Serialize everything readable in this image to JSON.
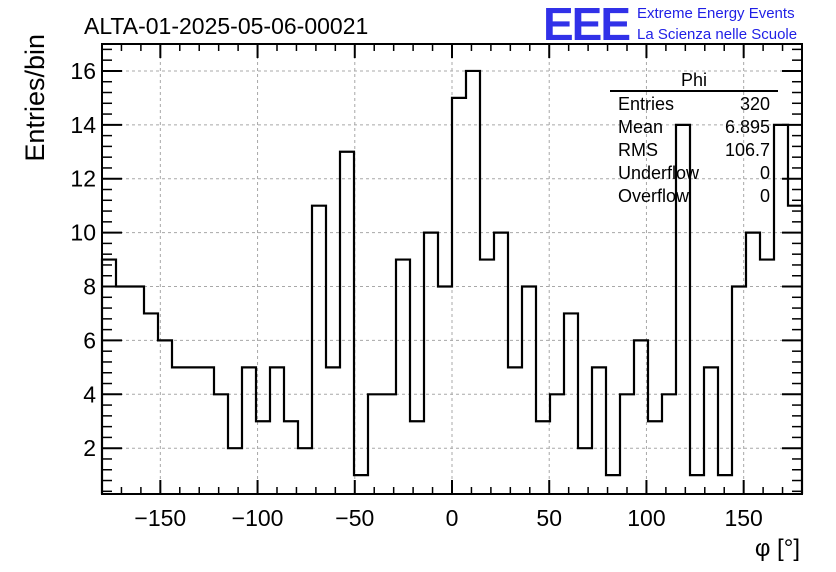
{
  "chart_data": {
    "type": "histogram",
    "title": "ALTA-01-2025-05-06-00021",
    "xlabel": "φ [°]",
    "ylabel": "Entries/bin",
    "xlim": [
      -180,
      180
    ],
    "ylim": [
      0.3,
      17.0
    ],
    "bin_width": 7.2,
    "grid": true,
    "xticks": [
      -150,
      -100,
      -50,
      0,
      50,
      100,
      150
    ],
    "xtick_labels": [
      "−150",
      "−100",
      "−50",
      "0",
      "50",
      "100",
      "150"
    ],
    "yticks": [
      2,
      4,
      6,
      8,
      10,
      12,
      14,
      16
    ],
    "ytick_labels": [
      "2",
      "4",
      "6",
      "8",
      "10",
      "12",
      "14",
      "16"
    ],
    "values": [
      9,
      8,
      8,
      7,
      6,
      5,
      5,
      5,
      4,
      2,
      5,
      3,
      5,
      3,
      2,
      11,
      5,
      13,
      1,
      4,
      4,
      9,
      3,
      10,
      8,
      15,
      16,
      9,
      10,
      5,
      8,
      3,
      4,
      7,
      2,
      5,
      1,
      4,
      6,
      3,
      4,
      14,
      1,
      5,
      1,
      8,
      10,
      9,
      14,
      11
    ],
    "stats": {
      "name": "Phi",
      "rows": [
        {
          "label": "Entries",
          "value": "320"
        },
        {
          "label": "Mean",
          "value": "6.895"
        },
        {
          "label": "RMS",
          "value": "106.7"
        },
        {
          "label": "Underflow",
          "value": "0"
        },
        {
          "label": "Overflow",
          "value": "0"
        }
      ]
    }
  },
  "logo": {
    "mark": "EEE",
    "line1": "Extreme Energy Events",
    "line2": "La Scienza nelle Scuole",
    "color": "#1f1fe6"
  }
}
